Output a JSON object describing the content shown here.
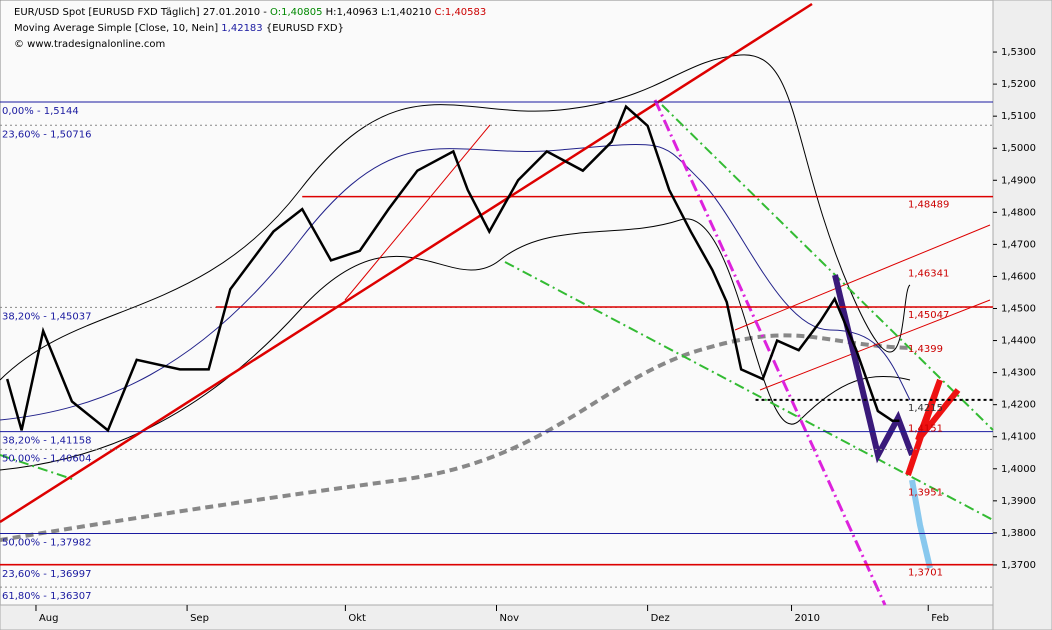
{
  "chart_data": {
    "type": "line",
    "header": [
      [
        {
          "text": "EUR/USD Spot [EURUSD FXD  Täglich] 27.01.2010 - ",
          "color": "#000000"
        },
        {
          "text": "O:1,40805",
          "color": "#008800"
        },
        {
          "text": " H:1,40963 L:1,40210 ",
          "color": "#000000"
        },
        {
          "text": "C:1,40583",
          "color": "#cc0000"
        }
      ],
      [
        {
          "text": "Moving Average Simple [Close, 10, Nein] ",
          "color": "#000000"
        },
        {
          "text": "1,42183",
          "color": "#1a1aa0"
        },
        {
          "text": " {EURUSD FXD}",
          "color": "#000000"
        }
      ],
      [
        {
          "text": "© www.tradesignalonline.com",
          "color": "#000000"
        }
      ]
    ],
    "series": [
      {
        "name": "EUR/USD",
        "color": "#000000",
        "x": [
          1,
          3,
          6,
          10,
          15,
          19,
          25,
          29,
          32,
          38,
          42,
          46,
          50,
          54,
          58,
          63,
          65,
          68,
          72,
          76,
          81,
          85,
          87,
          90,
          93,
          96,
          99,
          101,
          103,
          106,
          108,
          111,
          114,
          116,
          119,
          122,
          124,
          125
        ],
        "values": [
          1.428,
          1.412,
          1.443,
          1.421,
          1.412,
          1.434,
          1.431,
          1.431,
          1.456,
          1.474,
          1.481,
          1.465,
          1.468,
          1.481,
          1.493,
          1.499,
          1.487,
          1.474,
          1.49,
          1.499,
          1.493,
          1.502,
          1.513,
          1.507,
          1.487,
          1.474,
          1.462,
          1.452,
          1.431,
          1.428,
          1.44,
          1.437,
          1.446,
          1.453,
          1.437,
          1.418,
          1.415,
          1.415
        ]
      }
    ],
    "xlim": [
      0,
      138
    ],
    "xticks": [
      {
        "value": 5,
        "label": "Aug"
      },
      {
        "value": 26,
        "label": "Sep"
      },
      {
        "value": 48,
        "label": "Okt"
      },
      {
        "value": 69,
        "label": "Nov"
      },
      {
        "value": 90,
        "label": "Dez"
      },
      {
        "value": 110,
        "label": "2010"
      },
      {
        "value": 129,
        "label": "Feb"
      }
    ],
    "ylim": [
      1.36,
      1.54
    ],
    "yticks": [
      {
        "value": 1.37,
        "label": "1,3700"
      },
      {
        "value": 1.38,
        "label": "1,3800"
      },
      {
        "value": 1.39,
        "label": "1,3900"
      },
      {
        "value": 1.4,
        "label": "1,4000"
      },
      {
        "value": 1.41,
        "label": "1,4100"
      },
      {
        "value": 1.42,
        "label": "1,4200"
      },
      {
        "value": 1.43,
        "label": "1,4300"
      },
      {
        "value": 1.44,
        "label": "1,4400"
      },
      {
        "value": 1.45,
        "label": "1,4500"
      },
      {
        "value": 1.46,
        "label": "1,4600"
      },
      {
        "value": 1.47,
        "label": "1,4700"
      },
      {
        "value": 1.48,
        "label": "1,4800"
      },
      {
        "value": 1.49,
        "label": "1,4900"
      },
      {
        "value": 1.5,
        "label": "1,5000"
      },
      {
        "value": 1.51,
        "label": "1,5100"
      },
      {
        "value": 1.52,
        "label": "1,5200"
      },
      {
        "value": 1.53,
        "label": "1,5300"
      }
    ],
    "fib_levels": [
      {
        "value": 1.5144,
        "label": "0,00% - 1,5144",
        "color": "#1a1aa0"
      },
      {
        "value": 1.50716,
        "label": "23,60% - 1,50716",
        "color": "#888888"
      },
      {
        "value": 1.45037,
        "label": "38,20% - 1,45037",
        "color": "#888888"
      },
      {
        "value": 1.41158,
        "label": "38,20% - 1,41158",
        "color": "#1a1aa0"
      },
      {
        "value": 1.40604,
        "label": "50,00% - 1,40604",
        "color": "#888888"
      },
      {
        "value": 1.37982,
        "label": "50,00% - 1,37982",
        "color": "#1a1aa0"
      },
      {
        "value": 1.36997,
        "label": "23,60% - 1,36997",
        "color": "#cc0000"
      },
      {
        "value": 1.36307,
        "label": "61,80% - 1,36307",
        "color": "#888888"
      }
    ],
    "h_lines": [
      {
        "value": 1.48489,
        "label": "1,48489",
        "color": "#dd0000",
        "from": 42
      },
      {
        "value": 1.46341,
        "label": "1,46341",
        "color": "#dd0000",
        "from": 138
      },
      {
        "value": 1.45047,
        "label": "1,45047",
        "color": "#dd0000",
        "from": 30
      },
      {
        "value": 1.4399,
        "label": "1,4399",
        "color": "#dd0000",
        "from": 138
      },
      {
        "value": 1.4215,
        "label": "1,4215",
        "color": "#000000",
        "from": 105
      },
      {
        "value": 1.4151,
        "label": "1,4151",
        "color": "#dd0000",
        "from": 138
      },
      {
        "value": 1.3951,
        "label": "1,3951",
        "color": "#dd0000",
        "from": 138
      },
      {
        "value": 1.3701,
        "label": "1,3701",
        "color": "#dd0000",
        "from": 0
      }
    ]
  }
}
